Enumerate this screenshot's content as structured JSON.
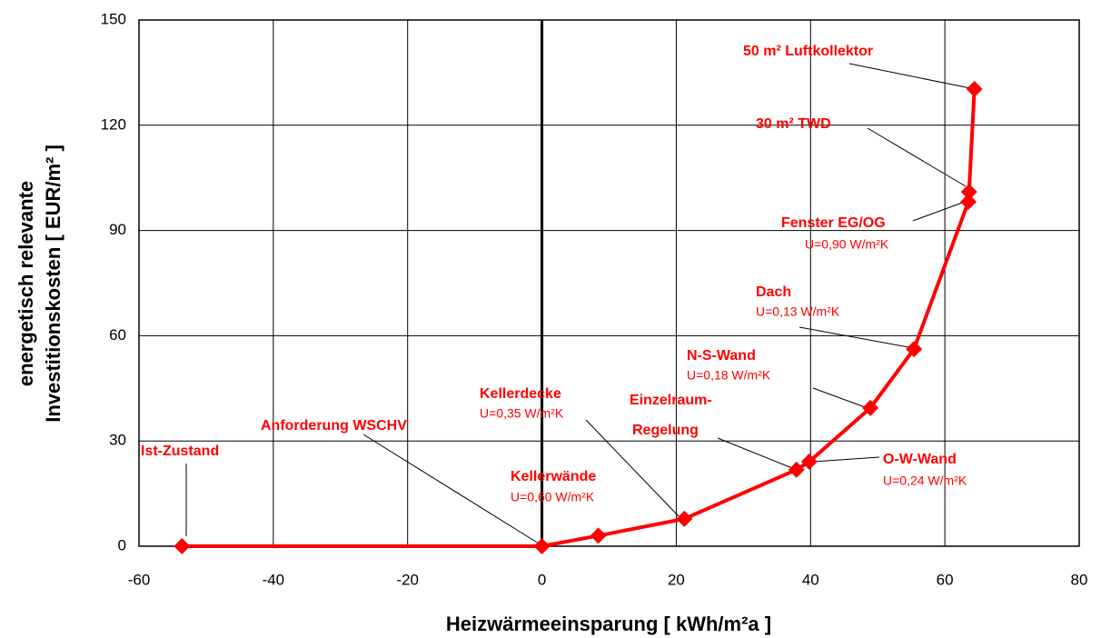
{
  "chart_data": {
    "type": "line",
    "xlabel": "Heizwärmeeinsparung  [ kWh/m²a ]",
    "ylabel": [
      "energetisch relevante",
      "Investitionskosten  [ EUR/m² ]"
    ],
    "x": [
      -53.6,
      0,
      8.4,
      21.2,
      37.9,
      39.8,
      48.9,
      55.4,
      63.5,
      63.6,
      64.4
    ],
    "values": [
      0,
      0,
      3,
      7.8,
      21.8,
      24.1,
      39.4,
      56.2,
      98.2,
      101,
      130.3
    ],
    "color": "#ff0000",
    "xlim": [
      -60,
      80
    ],
    "xticks": [
      -60,
      -40,
      -20,
      0,
      20,
      40,
      60,
      80
    ],
    "ylim": [
      0,
      150
    ],
    "yticks": [
      0,
      30,
      60,
      90,
      120,
      150
    ],
    "grid": true,
    "annotations": [
      {
        "text": "50 m² Luftkollektor"
      },
      {
        "text": "30 m² TWD"
      },
      {
        "text": "Fenster EG/OG",
        "detail": "U=0,90 W/m²K"
      },
      {
        "text": "Dach",
        "detail": "U=0,13 W/m²K"
      },
      {
        "text": "N-S-Wand",
        "detail": "U=0,18 W/m²K"
      },
      {
        "text": "Einzelraum-",
        "detail": "Regelung"
      },
      {
        "text": "O-W-Wand",
        "detail": "U=0,24 W/m²K"
      },
      {
        "text": "Kellerdecke",
        "detail": "U=0,35 W/m²K"
      },
      {
        "text": "Anforderung WSCHV"
      },
      {
        "text": "Kellerwände",
        "detail": "U=0,60 W/m²K"
      },
      {
        "text": "Ist-Zustand"
      }
    ]
  }
}
